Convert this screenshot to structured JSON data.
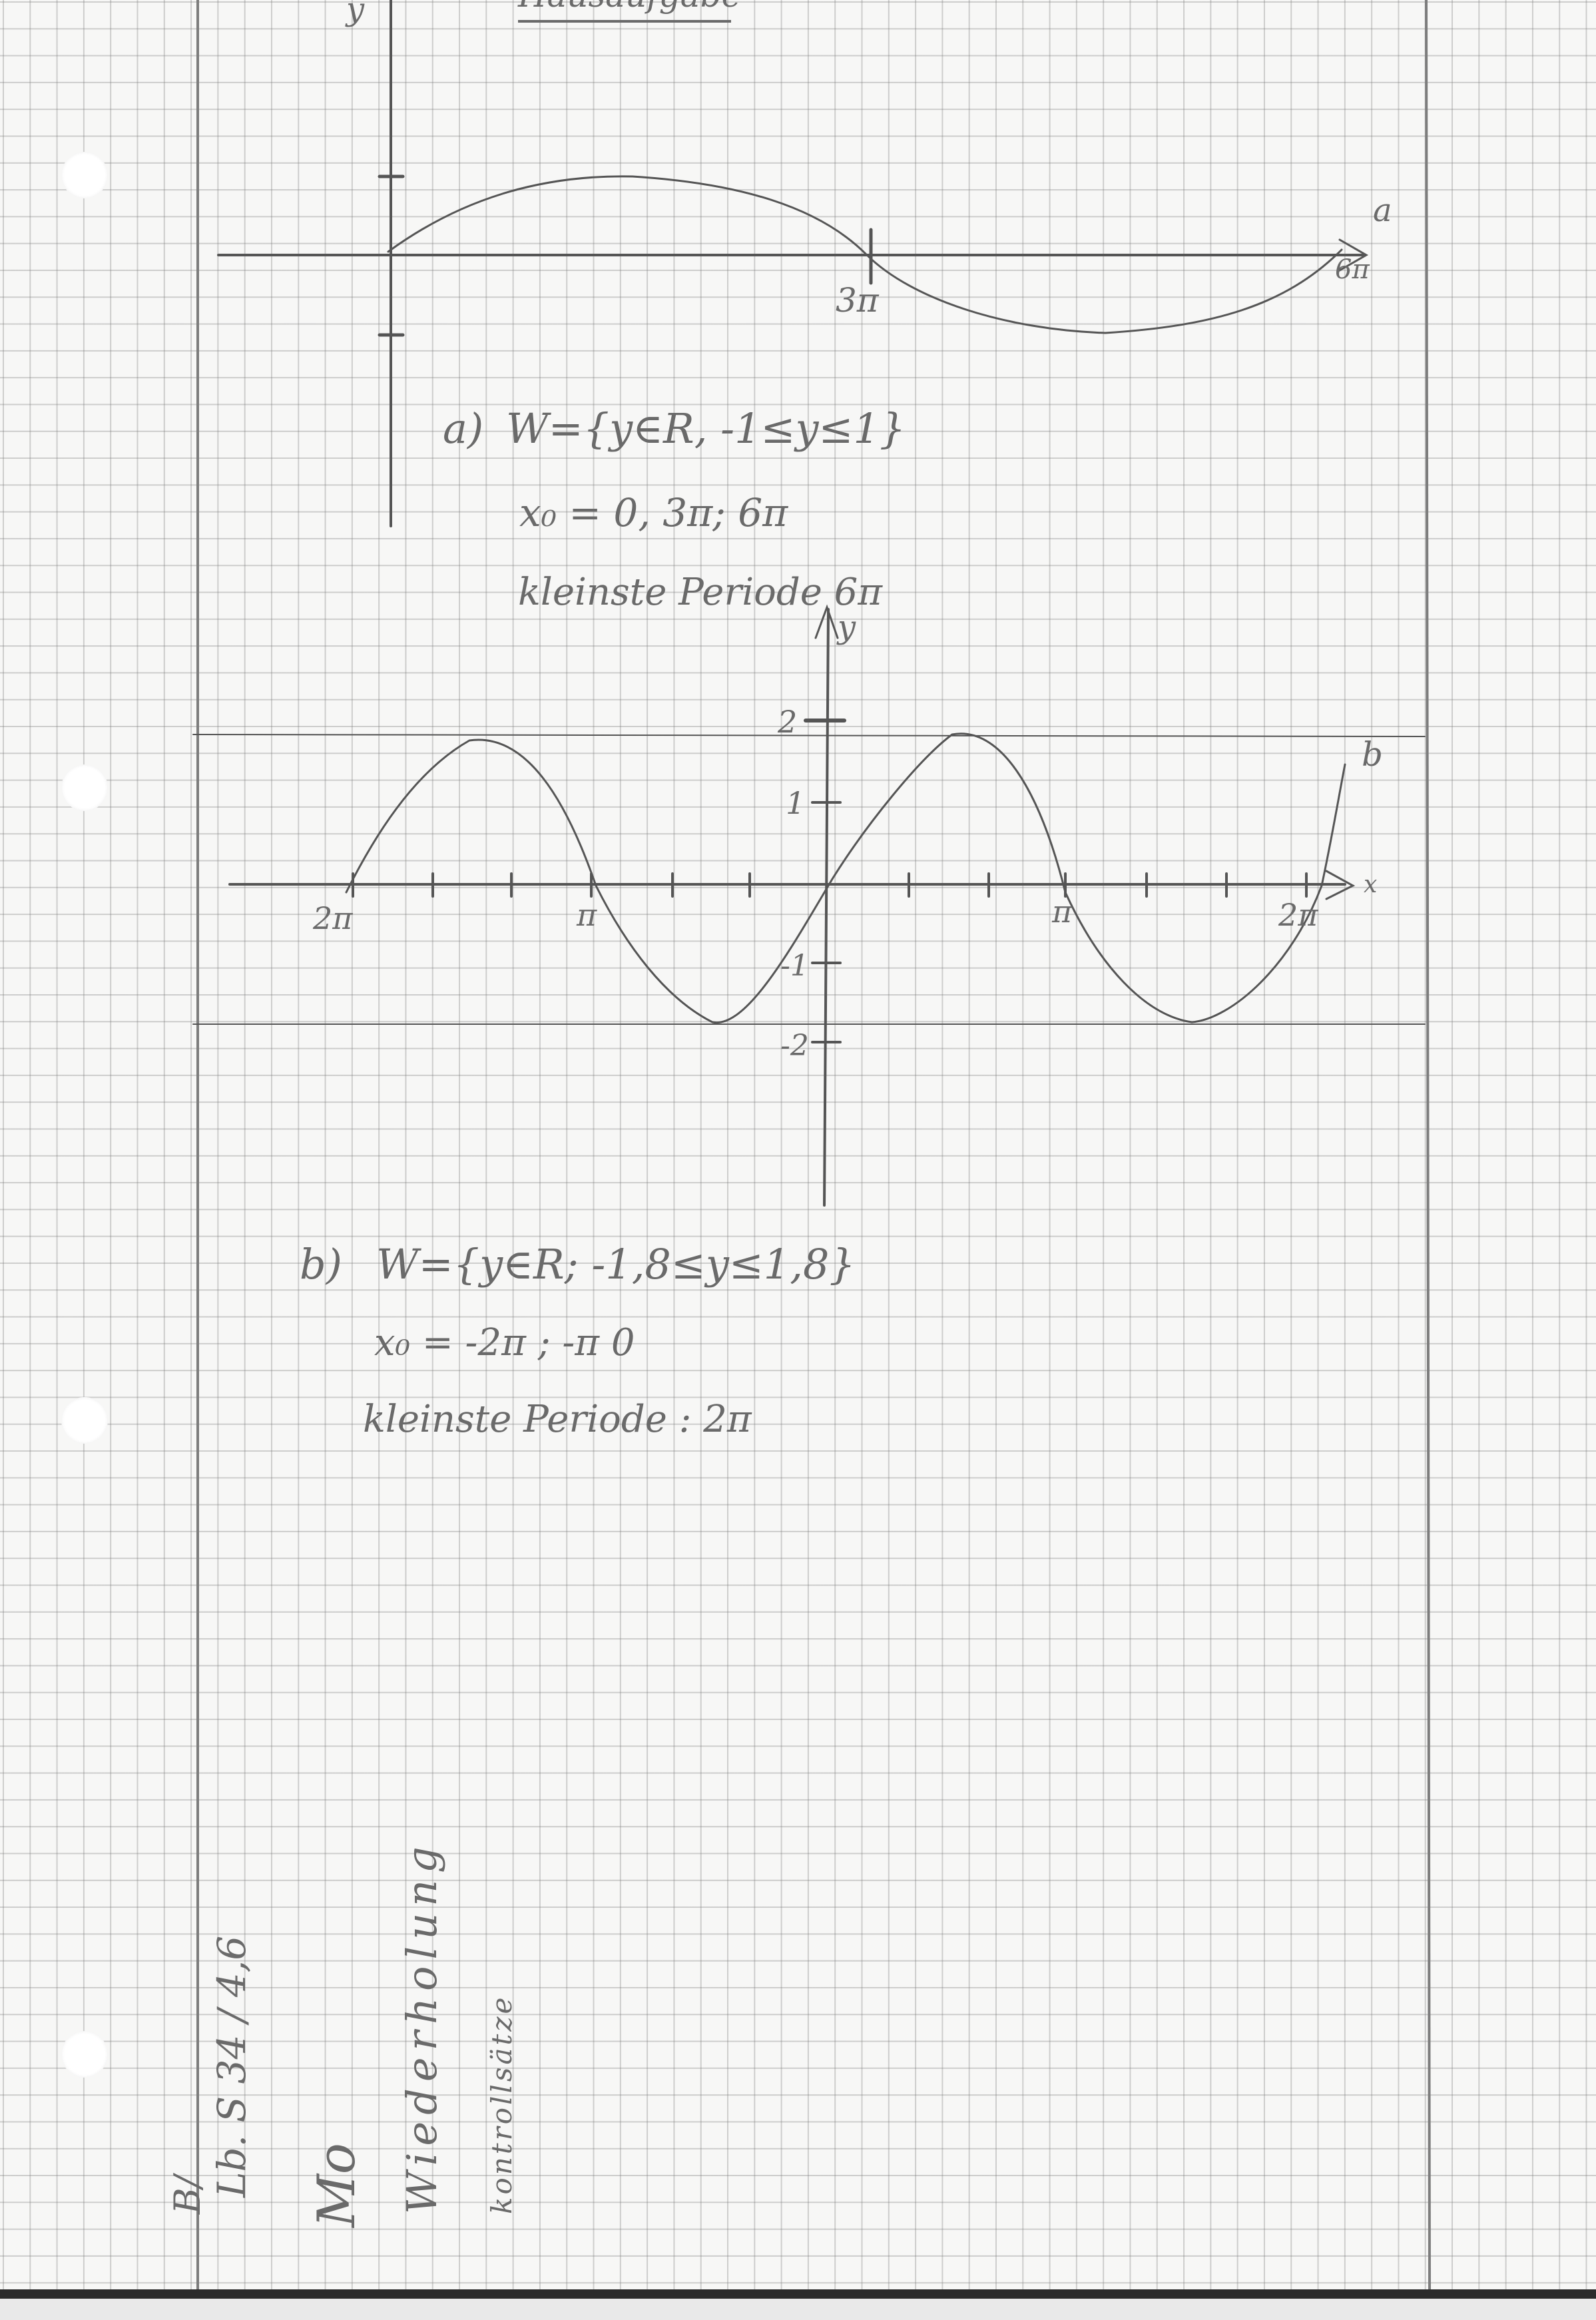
{
  "header": {
    "title": "Hausaufgabe"
  },
  "graph_a": {
    "y_axis_label": "y",
    "x_axis_label": "a",
    "tick_labels": {
      "three_pi": "3π",
      "six_pi": "6π"
    }
  },
  "part_a": {
    "label": "a)",
    "range": "W={y∈R, -1≤y≤1}",
    "zeros": "x₀ = 0, 3π; 6π",
    "period": "kleinste Periode 6π"
  },
  "graph_b": {
    "y_axis_label": "y",
    "x_axis_label": "x",
    "side_label": "b",
    "y_tick_labels": {
      "p2": "2",
      "p1": "1",
      "m1": "-1",
      "m2": "-2"
    },
    "x_tick_labels": {
      "m2pi": "2π",
      "mpi": "π",
      "pi": "π",
      "p2pi": "2π"
    }
  },
  "part_b": {
    "label": "b)",
    "range": "W={y∈R; -1,8≤y≤1,8}",
    "zeros": "x₀ = -2π ; -π 0",
    "period": "kleinste Periode : 2π"
  },
  "margin_notes": {
    "buch": "B/",
    "aufgabe": "Lb. S 34 / 4,6",
    "mo": "Mo",
    "wiederholung": "Wiederholung",
    "kontrolle": "kontrollsätze"
  },
  "colors": {
    "ink": "#6a6a6a",
    "pencil": "#555555",
    "paper": "#f7f7f6",
    "grid": "#a8a8a8"
  }
}
